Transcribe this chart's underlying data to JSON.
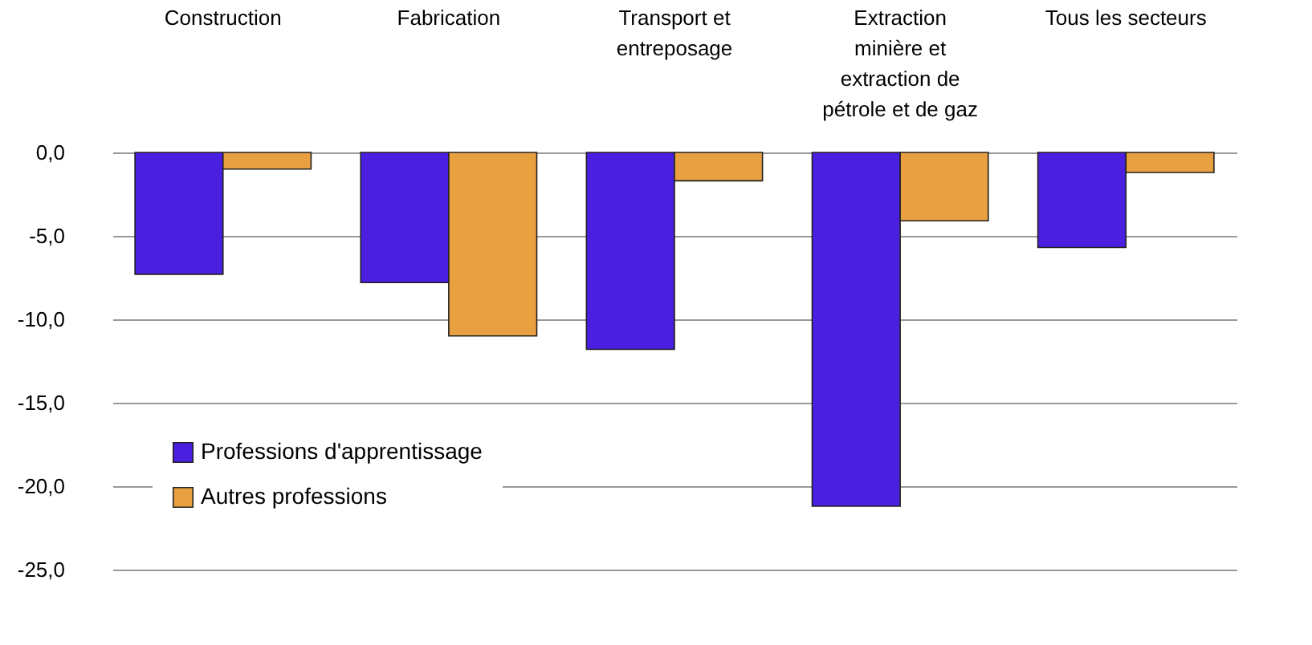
{
  "chart_data": {
    "type": "bar",
    "categories": [
      "Construction",
      "Fabrication",
      "Transport et entreposage",
      "Extraction minière et extraction de pétrole et de gaz",
      "Tous les secteurs"
    ],
    "series": [
      {
        "name": "Professions d'apprentissage",
        "color": "#4a1fe0",
        "values": [
          -7.3,
          -7.8,
          -11.8,
          -21.2,
          -5.7
        ]
      },
      {
        "name": "Autres professions",
        "color": "#e8a040",
        "values": [
          -1.0,
          -11.0,
          -1.7,
          -4.1,
          -1.2
        ]
      }
    ],
    "ylim": [
      -25,
      0
    ],
    "yticks": [
      {
        "value": 0,
        "label": "0,0"
      },
      {
        "value": -5,
        "label": "-5,0"
      },
      {
        "value": -10,
        "label": "-10,0"
      },
      {
        "value": -15,
        "label": "-15,0"
      },
      {
        "value": -20,
        "label": "-20,0"
      },
      {
        "value": -25,
        "label": "-25,0"
      }
    ],
    "grid": "y",
    "legend": "bottom left"
  }
}
